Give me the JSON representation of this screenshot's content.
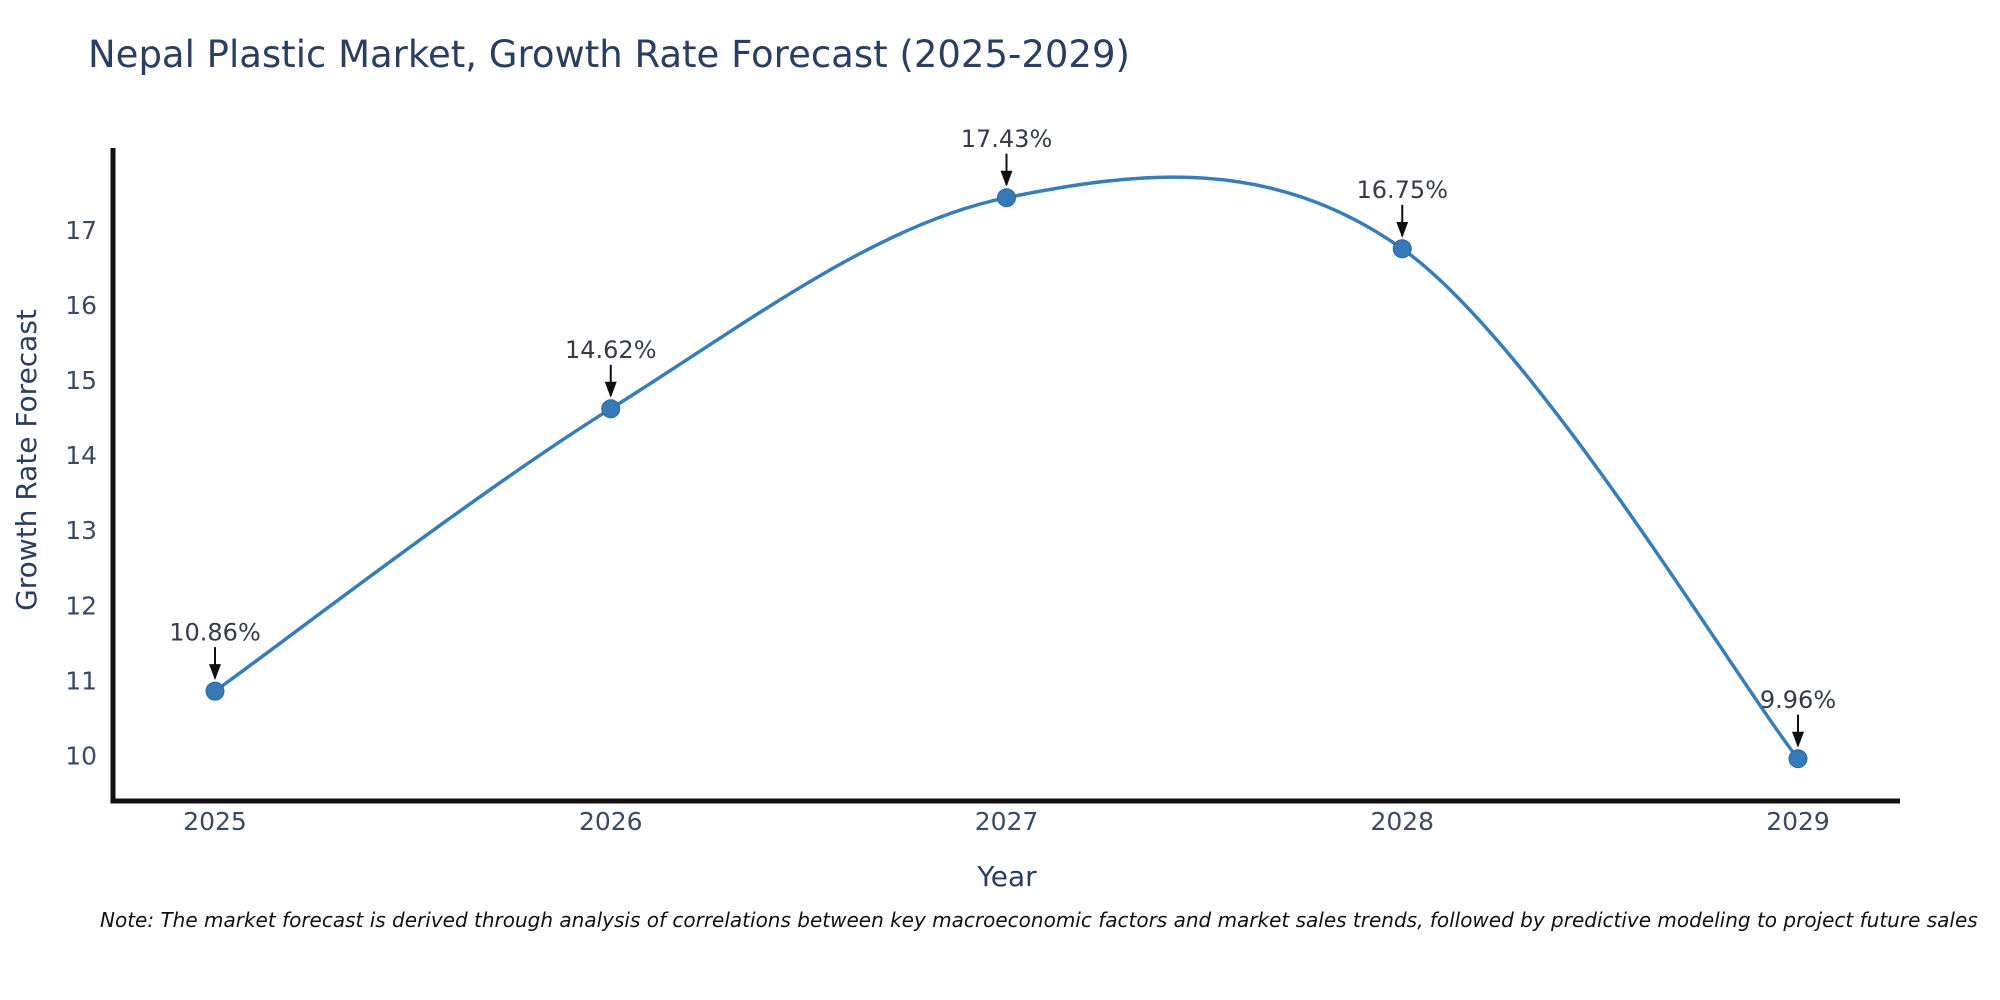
{
  "title": "Nepal Plastic Market, Growth Rate Forecast (2025-2029)",
  "note": "Note: The market forecast is derived through analysis of correlations between key macroeconomic factors and market sales trends, followed by predictive modeling to project future sales",
  "chart_data": {
    "type": "line",
    "title": "Nepal Plastic Market, Growth Rate Forecast (2025-2029)",
    "xlabel": "Year",
    "ylabel": "Growth Rate Forecast",
    "x": [
      2025,
      2026,
      2027,
      2028,
      2029
    ],
    "xticks": [
      "2025",
      "2026",
      "2027",
      "2028",
      "2029"
    ],
    "series": [
      {
        "name": "Growth Rate Forecast",
        "values": [
          10.86,
          14.62,
          17.43,
          16.75,
          9.96
        ]
      }
    ],
    "point_labels": [
      "10.86%",
      "14.62%",
      "17.43%",
      "16.75%",
      "9.96%"
    ],
    "yticks": [
      10,
      11,
      12,
      13,
      14,
      15,
      16,
      17
    ],
    "ylim": [
      9.4,
      18.1
    ],
    "grid": false,
    "legend": "none",
    "smooth": true,
    "annotation_arrows": true,
    "colors": {
      "line": "#377db8",
      "marker": "#3579b8",
      "spine": "#111111",
      "title_text": "#2a3f5f",
      "tick_text": "#3b4a63",
      "annotation_text": "#353c48",
      "note_text": "#111111"
    }
  }
}
